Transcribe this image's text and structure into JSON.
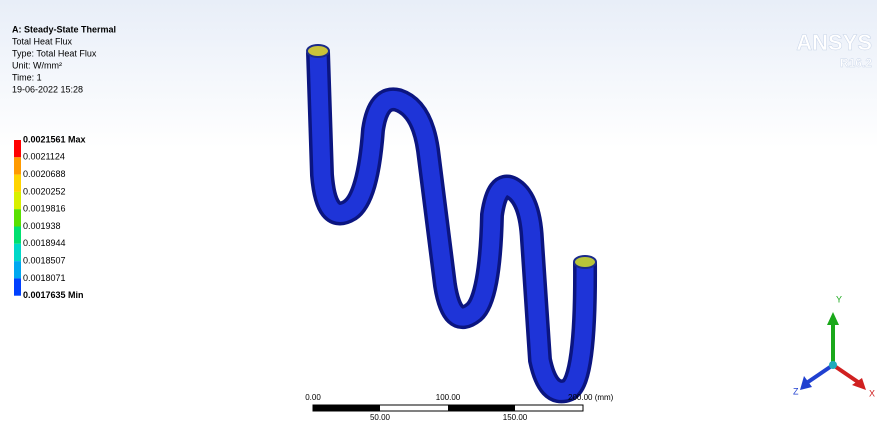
{
  "header": {
    "lines": [
      "A: Steady-State Thermal",
      "Total Heat Flux",
      "Type: Total Heat Flux",
      "Unit: W/mm²",
      "Time: 1",
      "19-06-2022 15:28"
    ]
  },
  "legend": {
    "labels": [
      "0.0021561 Max",
      "0.0021124",
      "0.0020688",
      "0.0020252",
      "0.0019816",
      "0.001938",
      "0.0018944",
      "0.0018507",
      "0.0018071",
      "0.0017635 Min"
    ]
  },
  "logo": {
    "brand": "ANSYS",
    "version": "R16.2"
  },
  "scale_bar": {
    "top_labels": [
      "0.00",
      "100.00",
      "200.00 (mm)"
    ],
    "bottom_labels": [
      "50.00",
      "150.00"
    ]
  },
  "triad": {
    "axes": [
      "Y",
      "Z",
      "X"
    ]
  }
}
